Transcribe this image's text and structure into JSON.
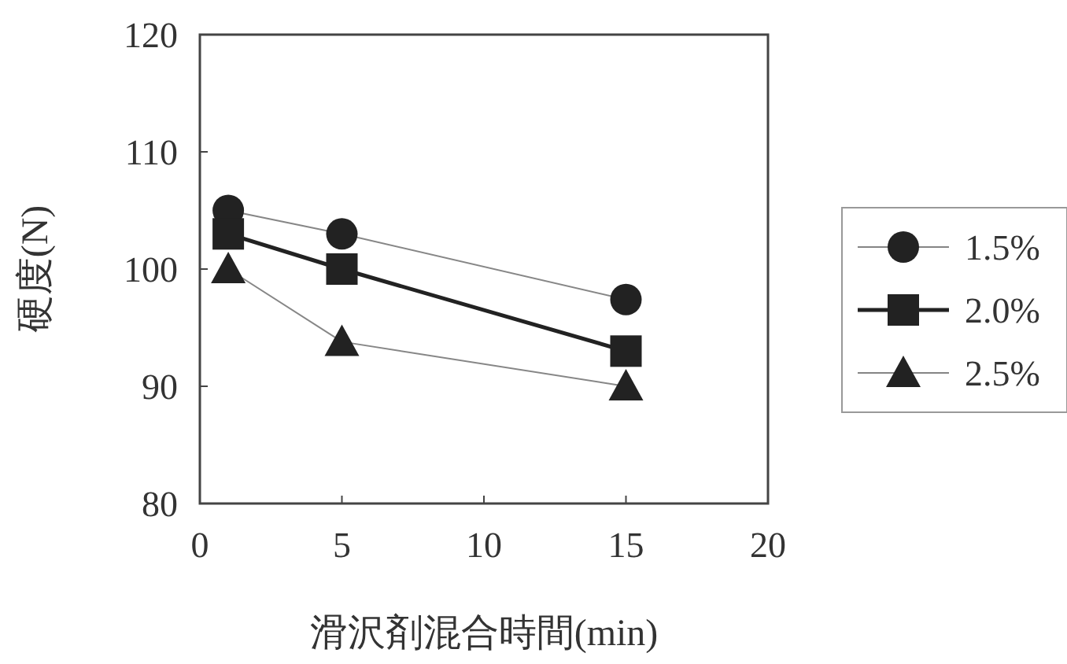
{
  "chart_data": {
    "type": "line",
    "xlabel": "滑沢剤混合時間(min)",
    "ylabel": "硬度(N)",
    "x": [
      1,
      5,
      15
    ],
    "series": [
      {
        "name": "1.5%",
        "color": "#222222",
        "marker": "circle",
        "values": [
          105,
          103,
          97.4
        ]
      },
      {
        "name": "2.0%",
        "color": "#222222",
        "marker": "square",
        "values": [
          103,
          100,
          93
        ]
      },
      {
        "name": "2.5%",
        "color": "#222222",
        "marker": "triangle",
        "values": [
          100,
          93.8,
          90
        ]
      }
    ],
    "xlim": [
      0,
      20
    ],
    "xticks": [
      0,
      5,
      10,
      15,
      20
    ],
    "ylim": [
      80,
      120
    ],
    "yticks": [
      80,
      90,
      100,
      110,
      120
    ],
    "grid": false,
    "legend": "right",
    "line_style": "solid"
  }
}
